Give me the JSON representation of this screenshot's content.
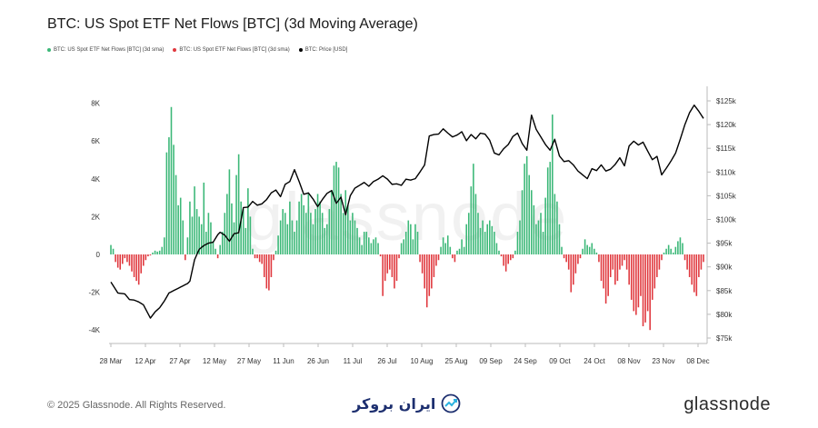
{
  "header": {
    "title": "BTC: US Spot ETF Net Flows [BTC] (3d Moving Average)"
  },
  "footer": {
    "copyright": "© 2025 Glassnode. All Rights Reserved.",
    "logo_text": "glassnode",
    "partner_text": "ایران بروکر",
    "watermark": "glassnode"
  },
  "colors": {
    "positive": "#3cb878",
    "negative": "#e0383e",
    "price": "#000000"
  },
  "chart_data": {
    "type": "bar",
    "title": "BTC: US Spot ETF Net Flows [BTC] (3d Moving Average)",
    "legend": [
      {
        "name": "BTC: US Spot ETF Net Flows [BTC] (3d sma)",
        "color": "#3cb878"
      },
      {
        "name": "BTC: US Spot ETF Net Flows [BTC] (3d sma)",
        "color": "#e0383e"
      },
      {
        "name": "BTC: Price [USD]",
        "color": "#000000"
      }
    ],
    "x_ticks": [
      "28 Mar",
      "12 Apr",
      "27 Apr",
      "12 May",
      "27 May",
      "11 Jun",
      "26 Jun",
      "11 Jul",
      "26 Jul",
      "10 Aug",
      "25 Aug",
      "09 Sep",
      "24 Sep",
      "09 Oct",
      "24 Oct",
      "08 Nov",
      "23 Nov",
      "08 Dec"
    ],
    "y_left": {
      "label": "",
      "ticks": [
        "8K",
        "6K",
        "4K",
        "2K",
        "0",
        "-2K",
        "-4K"
      ],
      "tick_values": [
        8000,
        6000,
        4000,
        2000,
        0,
        -2000,
        -4000
      ],
      "range": [
        -4800,
        8600
      ]
    },
    "y_right": {
      "label": "",
      "ticks": [
        "$125k",
        "$120k",
        "$115k",
        "$110k",
        "$105k",
        "$100k",
        "$95k",
        "$90k",
        "$85k",
        "$80k",
        "$75k"
      ],
      "tick_values": [
        125,
        120,
        115,
        110,
        105,
        100,
        95,
        90,
        85,
        80,
        75
      ],
      "range": [
        73,
        126.5
      ]
    },
    "days": 256,
    "flow_keypoints": [
      [
        0,
        500
      ],
      [
        1,
        300
      ],
      [
        2,
        -400
      ],
      [
        3,
        -700
      ],
      [
        4,
        -800
      ],
      [
        5,
        -500
      ],
      [
        6,
        -200
      ],
      [
        7,
        -400
      ],
      [
        8,
        -600
      ],
      [
        9,
        -900
      ],
      [
        10,
        -1200
      ],
      [
        11,
        -1400
      ],
      [
        12,
        -1600
      ],
      [
        13,
        -1000
      ],
      [
        14,
        -600
      ],
      [
        15,
        -300
      ],
      [
        16,
        -100
      ],
      [
        17,
        -50
      ],
      [
        18,
        100
      ],
      [
        19,
        200
      ],
      [
        20,
        150
      ],
      [
        21,
        200
      ],
      [
        22,
        400
      ],
      [
        23,
        900
      ],
      [
        24,
        5400
      ],
      [
        25,
        6200
      ],
      [
        26,
        7800
      ],
      [
        27,
        5800
      ],
      [
        28,
        4200
      ],
      [
        29,
        2600
      ],
      [
        30,
        3000
      ],
      [
        31,
        1800
      ],
      [
        32,
        -300
      ],
      [
        33,
        900
      ],
      [
        34,
        2800
      ],
      [
        35,
        2000
      ],
      [
        36,
        3600
      ],
      [
        37,
        2400
      ],
      [
        38,
        2000
      ],
      [
        39,
        1600
      ],
      [
        40,
        3800
      ],
      [
        41,
        1200
      ],
      [
        42,
        2200
      ],
      [
        43,
        1700
      ],
      [
        44,
        700
      ],
      [
        45,
        300
      ],
      [
        46,
        -200
      ],
      [
        47,
        500
      ],
      [
        48,
        1200
      ],
      [
        49,
        2200
      ],
      [
        50,
        3200
      ],
      [
        51,
        4500
      ],
      [
        52,
        2700
      ],
      [
        53,
        1700
      ],
      [
        54,
        4200
      ],
      [
        55,
        5300
      ],
      [
        56,
        2800
      ],
      [
        57,
        2400
      ],
      [
        58,
        1400
      ],
      [
        59,
        3500
      ],
      [
        60,
        2000
      ],
      [
        61,
        300
      ],
      [
        62,
        -200
      ],
      [
        63,
        -200
      ],
      [
        64,
        -400
      ],
      [
        65,
        -500
      ],
      [
        66,
        -1200
      ],
      [
        67,
        -1800
      ],
      [
        68,
        -1900
      ],
      [
        69,
        -1200
      ],
      [
        70,
        -300
      ],
      [
        71,
        200
      ],
      [
        72,
        1000
      ],
      [
        73,
        1800
      ],
      [
        74,
        2400
      ],
      [
        75,
        2200
      ],
      [
        76,
        1600
      ],
      [
        77,
        2800
      ],
      [
        78,
        1800
      ],
      [
        79,
        1200
      ],
      [
        80,
        1800
      ],
      [
        81,
        2800
      ],
      [
        82,
        3200
      ],
      [
        83,
        2600
      ],
      [
        84,
        2200
      ],
      [
        85,
        3200
      ],
      [
        86,
        2200
      ],
      [
        87,
        1600
      ],
      [
        88,
        2400
      ],
      [
        89,
        3200
      ],
      [
        90,
        2800
      ],
      [
        91,
        2200
      ],
      [
        92,
        1400
      ],
      [
        93,
        1600
      ],
      [
        94,
        2400
      ],
      [
        95,
        3400
      ],
      [
        96,
        4700
      ],
      [
        97,
        4900
      ],
      [
        98,
        4600
      ],
      [
        99,
        3200
      ],
      [
        100,
        2200
      ],
      [
        101,
        3400
      ],
      [
        102,
        2600
      ],
      [
        103,
        1800
      ],
      [
        104,
        2200
      ],
      [
        105,
        1800
      ],
      [
        106,
        1400
      ],
      [
        107,
        900
      ],
      [
        108,
        500
      ],
      [
        109,
        1200
      ],
      [
        110,
        1200
      ],
      [
        111,
        900
      ],
      [
        112,
        600
      ],
      [
        113,
        800
      ],
      [
        114,
        900
      ],
      [
        115,
        600
      ],
      [
        116,
        -100
      ],
      [
        117,
        -2200
      ],
      [
        118,
        -1400
      ],
      [
        119,
        -1000
      ],
      [
        120,
        -800
      ],
      [
        121,
        -1200
      ],
      [
        122,
        -1800
      ],
      [
        123,
        -1400
      ],
      [
        124,
        -200
      ],
      [
        125,
        600
      ],
      [
        126,
        800
      ],
      [
        127,
        1200
      ],
      [
        128,
        1800
      ],
      [
        129,
        1600
      ],
      [
        130,
        800
      ],
      [
        131,
        1600
      ],
      [
        132,
        1200
      ],
      [
        133,
        -400
      ],
      [
        134,
        -1000
      ],
      [
        135,
        -1800
      ],
      [
        136,
        -2800
      ],
      [
        137,
        -2200
      ],
      [
        138,
        -1800
      ],
      [
        139,
        -1200
      ],
      [
        140,
        -600
      ],
      [
        141,
        -300
      ],
      [
        142,
        400
      ],
      [
        143,
        900
      ],
      [
        144,
        600
      ],
      [
        145,
        1000
      ],
      [
        146,
        400
      ],
      [
        147,
        -200
      ],
      [
        148,
        -400
      ],
      [
        149,
        200
      ],
      [
        150,
        300
      ],
      [
        151,
        800
      ],
      [
        152,
        400
      ],
      [
        153,
        1600
      ],
      [
        154,
        2200
      ],
      [
        155,
        3600
      ],
      [
        156,
        4800
      ],
      [
        157,
        3200
      ],
      [
        158,
        2200
      ],
      [
        159,
        1400
      ],
      [
        160,
        1800
      ],
      [
        161,
        1200
      ],
      [
        162,
        1600
      ],
      [
        163,
        1800
      ],
      [
        164,
        1500
      ],
      [
        165,
        1200
      ],
      [
        166,
        600
      ],
      [
        167,
        200
      ],
      [
        168,
        -100
      ],
      [
        169,
        -600
      ],
      [
        170,
        -900
      ],
      [
        171,
        -500
      ],
      [
        172,
        -300
      ],
      [
        173,
        -200
      ],
      [
        174,
        200
      ],
      [
        175,
        1200
      ],
      [
        176,
        1800
      ],
      [
        177,
        3400
      ],
      [
        178,
        4800
      ],
      [
        179,
        5200
      ],
      [
        180,
        4200
      ],
      [
        181,
        3400
      ],
      [
        182,
        2600
      ],
      [
        183,
        1600
      ],
      [
        184,
        1800
      ],
      [
        185,
        2200
      ],
      [
        186,
        1200
      ],
      [
        187,
        3000
      ],
      [
        188,
        4600
      ],
      [
        189,
        4900
      ],
      [
        190,
        7400
      ],
      [
        191,
        3200
      ],
      [
        192,
        2800
      ],
      [
        193,
        1600
      ],
      [
        194,
        400
      ],
      [
        195,
        -200
      ],
      [
        196,
        -400
      ],
      [
        197,
        -800
      ],
      [
        198,
        -2000
      ],
      [
        199,
        -1600
      ],
      [
        200,
        -1000
      ],
      [
        201,
        -500
      ],
      [
        202,
        -200
      ],
      [
        203,
        300
      ],
      [
        204,
        800
      ],
      [
        205,
        500
      ],
      [
        206,
        400
      ],
      [
        207,
        600
      ],
      [
        208,
        300
      ],
      [
        209,
        100
      ],
      [
        210,
        -400
      ],
      [
        211,
        -1400
      ],
      [
        212,
        -1800
      ],
      [
        213,
        -2600
      ],
      [
        214,
        -2200
      ],
      [
        215,
        -1200
      ],
      [
        216,
        -800
      ],
      [
        217,
        -1600
      ],
      [
        218,
        -1400
      ],
      [
        219,
        -800
      ],
      [
        220,
        -600
      ],
      [
        221,
        -300
      ],
      [
        222,
        -800
      ],
      [
        223,
        -1600
      ],
      [
        224,
        -2400
      ],
      [
        225,
        -3000
      ],
      [
        226,
        -3200
      ],
      [
        227,
        -2800
      ],
      [
        228,
        -2200
      ],
      [
        229,
        -3800
      ],
      [
        230,
        -3600
      ],
      [
        231,
        -3000
      ],
      [
        232,
        -4000
      ],
      [
        233,
        -2400
      ],
      [
        234,
        -1800
      ],
      [
        235,
        -1200
      ],
      [
        236,
        -800
      ],
      [
        237,
        -300
      ],
      [
        238,
        100
      ],
      [
        239,
        300
      ],
      [
        240,
        500
      ],
      [
        241,
        300
      ],
      [
        242,
        100
      ],
      [
        243,
        400
      ],
      [
        244,
        700
      ],
      [
        245,
        900
      ],
      [
        246,
        600
      ],
      [
        247,
        -300
      ],
      [
        248,
        -800
      ],
      [
        249,
        -1200
      ],
      [
        250,
        -1600
      ],
      [
        251,
        -2000
      ],
      [
        252,
        -2200
      ],
      [
        253,
        -1200
      ],
      [
        254,
        -800
      ],
      [
        255,
        -400
      ]
    ],
    "price_keypoints": [
      [
        0,
        86.8
      ],
      [
        3,
        84.5
      ],
      [
        6,
        84.3
      ],
      [
        8,
        83.1
      ],
      [
        10,
        83.0
      ],
      [
        12,
        82.6
      ],
      [
        14,
        82.0
      ],
      [
        17,
        79.2
      ],
      [
        19,
        80.5
      ],
      [
        21,
        81.4
      ],
      [
        23,
        82.8
      ],
      [
        25,
        84.5
      ],
      [
        27,
        85.0
      ],
      [
        29,
        85.5
      ],
      [
        31,
        86.0
      ],
      [
        33,
        86.5
      ],
      [
        34,
        87.0
      ],
      [
        36,
        91.5
      ],
      [
        38,
        93.7
      ],
      [
        40,
        94.5
      ],
      [
        42,
        95.0
      ],
      [
        44,
        95.2
      ],
      [
        46,
        96.8
      ],
      [
        47,
        97.3
      ],
      [
        49,
        96.7
      ],
      [
        51,
        95.4
      ],
      [
        53,
        97.0
      ],
      [
        55,
        97.2
      ],
      [
        57,
        102.5
      ],
      [
        59,
        102.6
      ],
      [
        61,
        103.8
      ],
      [
        63,
        103.0
      ],
      [
        65,
        103.3
      ],
      [
        67,
        104.2
      ],
      [
        69,
        105.6
      ],
      [
        71,
        106.2
      ],
      [
        73,
        104.8
      ],
      [
        75,
        107.4
      ],
      [
        77,
        108.0
      ],
      [
        79,
        110.5
      ],
      [
        81,
        108.0
      ],
      [
        83,
        105.3
      ],
      [
        85,
        105.6
      ],
      [
        87,
        104.3
      ],
      [
        89,
        102.7
      ],
      [
        91,
        104.2
      ],
      [
        93,
        105.5
      ],
      [
        95,
        106.1
      ],
      [
        97,
        103.4
      ],
      [
        99,
        104.7
      ],
      [
        101,
        101.0
      ],
      [
        103,
        105.0
      ],
      [
        105,
        106.6
      ],
      [
        107,
        107.2
      ],
      [
        109,
        107.8
      ],
      [
        111,
        107.0
      ],
      [
        113,
        108.0
      ],
      [
        115,
        108.5
      ],
      [
        117,
        109.2
      ],
      [
        119,
        108.5
      ],
      [
        121,
        107.4
      ],
      [
        123,
        107.5
      ],
      [
        125,
        107.2
      ],
      [
        127,
        108.5
      ],
      [
        129,
        108.3
      ],
      [
        131,
        108.6
      ],
      [
        133,
        110.0
      ],
      [
        135,
        111.5
      ],
      [
        137,
        117.6
      ],
      [
        139,
        117.9
      ],
      [
        141,
        118.0
      ],
      [
        143,
        119.1
      ],
      [
        145,
        118.2
      ],
      [
        147,
        117.4
      ],
      [
        149,
        117.8
      ],
      [
        151,
        118.5
      ],
      [
        153,
        116.6
      ],
      [
        155,
        117.9
      ],
      [
        157,
        117.0
      ],
      [
        159,
        118.2
      ],
      [
        161,
        118.0
      ],
      [
        163,
        116.7
      ],
      [
        165,
        114.0
      ],
      [
        167,
        113.6
      ],
      [
        169,
        114.9
      ],
      [
        171,
        115.8
      ],
      [
        173,
        117.5
      ],
      [
        175,
        118.2
      ],
      [
        177,
        116.0
      ],
      [
        179,
        114.6
      ],
      [
        181,
        122.0
      ],
      [
        183,
        119.0
      ],
      [
        185,
        117.4
      ],
      [
        187,
        115.8
      ],
      [
        189,
        114.6
      ],
      [
        191,
        116.9
      ],
      [
        193,
        113.4
      ],
      [
        195,
        112.2
      ],
      [
        197,
        112.4
      ],
      [
        199,
        111.5
      ],
      [
        201,
        110.2
      ],
      [
        203,
        109.4
      ],
      [
        205,
        108.6
      ],
      [
        207,
        110.7
      ],
      [
        209,
        110.3
      ],
      [
        211,
        111.5
      ],
      [
        213,
        110.2
      ],
      [
        215,
        110.6
      ],
      [
        217,
        111.6
      ],
      [
        219,
        113.0
      ],
      [
        221,
        111.3
      ],
      [
        223,
        115.5
      ],
      [
        225,
        116.5
      ],
      [
        227,
        115.7
      ],
      [
        229,
        116.3
      ],
      [
        231,
        114.4
      ],
      [
        233,
        112.6
      ],
      [
        235,
        113.3
      ],
      [
        237,
        109.4
      ],
      [
        239,
        110.8
      ],
      [
        241,
        112.3
      ],
      [
        243,
        114.0
      ],
      [
        245,
        116.9
      ],
      [
        247,
        120.0
      ],
      [
        249,
        122.5
      ],
      [
        251,
        124.1
      ],
      [
        253,
        122.8
      ],
      [
        255,
        121.3
      ]
    ]
  }
}
